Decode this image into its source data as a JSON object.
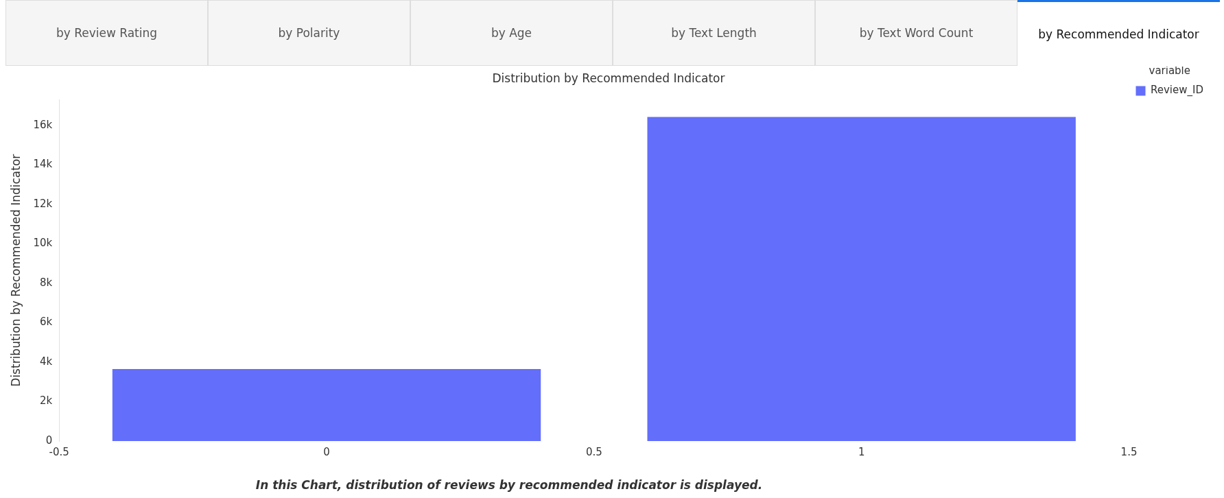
{
  "chart_data": {
    "type": "bar",
    "title": "Distribution by Recommended Indicator",
    "ylabel": "Distribution by Recommended Indicator",
    "legend_title": "variable",
    "x": [
      0,
      1
    ],
    "series": [
      {
        "name": "Review_ID",
        "color": "#636efa",
        "values": [
          3640,
          16420
        ]
      }
    ],
    "xlim": [
      -0.5,
      1.5
    ],
    "xticks": [
      -0.5,
      0,
      0.5,
      1,
      1.5
    ],
    "ylim": [
      0,
      17300
    ],
    "yticks": [
      {
        "value": 0,
        "label": "0"
      },
      {
        "value": 2000,
        "label": "2k"
      },
      {
        "value": 4000,
        "label": "4k"
      },
      {
        "value": 6000,
        "label": "6k"
      },
      {
        "value": 8000,
        "label": "8k"
      },
      {
        "value": 10000,
        "label": "10k"
      },
      {
        "value": 12000,
        "label": "12k"
      },
      {
        "value": 14000,
        "label": "14k"
      },
      {
        "value": 16000,
        "label": "16k"
      }
    ],
    "grid": false,
    "legend": "top right",
    "annotations": [
      "by Review Rating",
      "by Polarity",
      "by Age",
      "by Text Length",
      "by Text Word Count",
      "by Recommended Indicator",
      "In this Chart, distribution of reviews by recommended indicator is displayed."
    ]
  }
}
